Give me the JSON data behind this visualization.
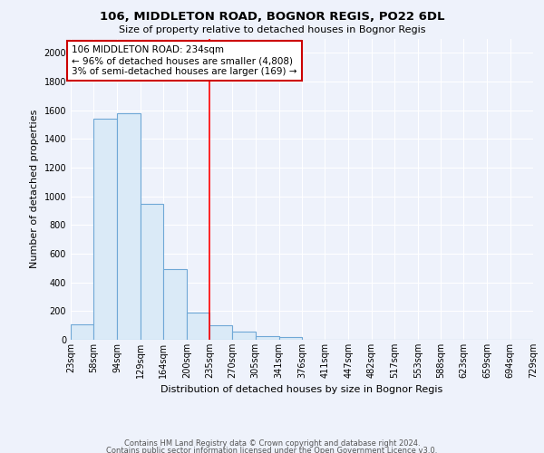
{
  "title": "106, MIDDLETON ROAD, BOGNOR REGIS, PO22 6DL",
  "subtitle": "Size of property relative to detached houses in Bognor Regis",
  "xlabel": "Distribution of detached houses by size in Bognor Regis",
  "ylabel": "Number of detached properties",
  "footnote1": "Contains HM Land Registry data © Crown copyright and database right 2024.",
  "footnote2": "Contains public sector information licensed under the Open Government Licence v3.0.",
  "bin_edges": [
    23,
    58,
    94,
    129,
    164,
    200,
    235,
    270,
    305,
    341,
    376,
    411,
    447,
    482,
    517,
    553,
    588,
    623,
    659,
    694,
    729
  ],
  "bar_heights": [
    110,
    1540,
    1580,
    950,
    490,
    190,
    100,
    55,
    25,
    20,
    0,
    0,
    0,
    0,
    0,
    0,
    0,
    0,
    0,
    0
  ],
  "bar_color": "#daeaf7",
  "bar_edge_color": "#6fa8d6",
  "red_line_x": 235,
  "ylim": [
    0,
    2100
  ],
  "yticks": [
    0,
    200,
    400,
    600,
    800,
    1000,
    1200,
    1400,
    1600,
    1800,
    2000
  ],
  "annotation_text": "106 MIDDLETON ROAD: 234sqm\n← 96% of detached houses are smaller (4,808)\n3% of semi-detached houses are larger (169) →",
  "annotation_box_color": "#ffffff",
  "annotation_box_edge": "#cc0000",
  "background_color": "#eef2fb",
  "grid_color": "#ffffff",
  "title_fontsize": 9.5,
  "subtitle_fontsize": 8,
  "ylabel_fontsize": 8,
  "tick_fontsize": 7,
  "annot_fontsize": 7.5,
  "footnote_fontsize": 6
}
